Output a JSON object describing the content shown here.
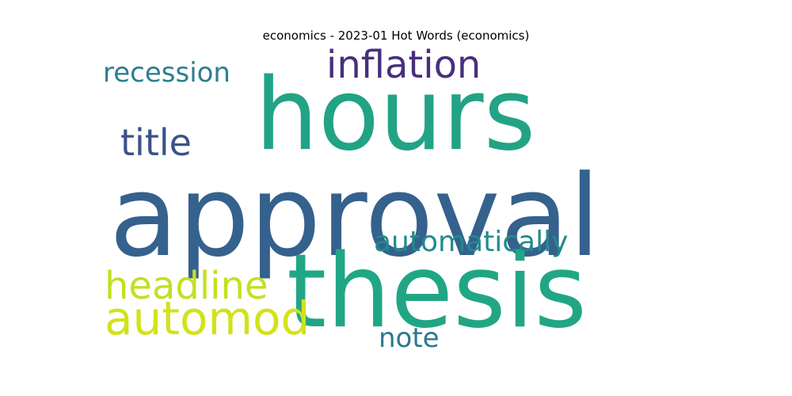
{
  "chart_data": {
    "type": "wordcloud",
    "title": "economics - 2023-01 Hot Words (economics)",
    "words": [
      {
        "text": "approval",
        "color": "#35618d"
      },
      {
        "text": "hours",
        "color": "#22a385"
      },
      {
        "text": "thesis",
        "color": "#21a685"
      },
      {
        "text": "inflation",
        "color": "#472f7d"
      },
      {
        "text": "recession",
        "color": "#2c7f8e"
      },
      {
        "text": "title",
        "color": "#3b5289"
      },
      {
        "text": "automatically",
        "color": "#238a8d"
      },
      {
        "text": "headline",
        "color": "#c4df22"
      },
      {
        "text": "automod",
        "color": "#d2e21b"
      },
      {
        "text": "note",
        "color": "#2b798e"
      }
    ]
  }
}
